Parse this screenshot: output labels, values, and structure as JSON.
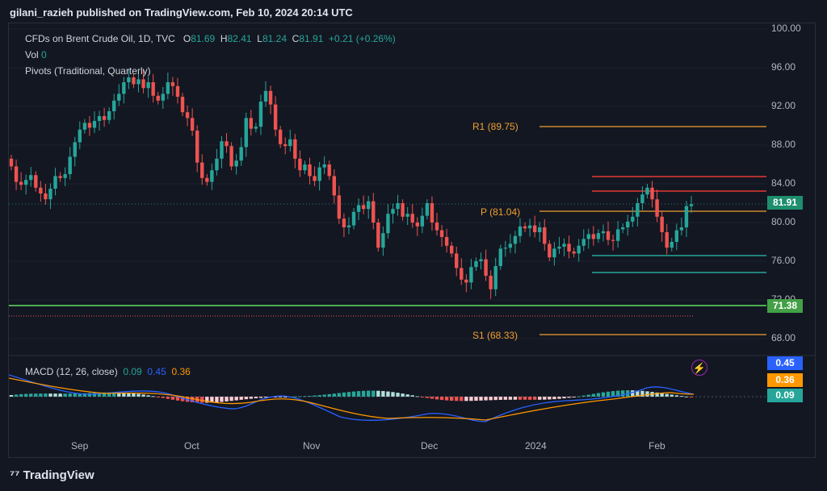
{
  "header": {
    "publisher_line": "gilani_razieh published on TradingView.com, Feb 10, 2024 20:14 UTC"
  },
  "legend": {
    "symbol": "CFDs on Brent Crude Oil, 1D, TVC",
    "o_label": "O",
    "o_val": "81.69",
    "h_label": "H",
    "h_val": "82.41",
    "l_label": "L",
    "l_val": "81.24",
    "c_label": "C",
    "c_val": "81.91",
    "change": "+0.21 (+0.26%)",
    "vol_label": "Vol",
    "vol_val": "0",
    "pivots": "Pivots (Traditional, Quarterly)",
    "macd_label": "MACD (12, 26, close)",
    "macd_hist": "0.09",
    "macd_line": "0.45",
    "macd_signal": "0.36"
  },
  "price_axis": [
    "100.00",
    "96.00",
    "92.00",
    "88.00",
    "84.00",
    "80.00",
    "76.00",
    "72.00",
    "68.00"
  ],
  "time_axis": [
    "Sep",
    "Oct",
    "Nov",
    "Dec",
    "2024",
    "Feb"
  ],
  "badges": {
    "last_price": "81.91",
    "support": "71.38",
    "macd_line": "0.45",
    "macd_signal": "0.36",
    "macd_hist": "0.09"
  },
  "pivots": {
    "r1": "R1 (89.75)",
    "p": "P (81.04)",
    "s1": "S1 (68.33)"
  },
  "footer": {
    "brand": "TradingView"
  },
  "colors": {
    "up": "#26a69a",
    "down": "#ef5350",
    "pivot": "#f0a030",
    "support": "#4caf50",
    "macd": "#2962ff",
    "signal": "#ff9800"
  },
  "chart_data": {
    "type": "candlestick",
    "ylim": [
      66,
      100
    ],
    "closes": [
      85.8,
      84.2,
      83.9,
      84.4,
      84.9,
      83.6,
      83.0,
      82.4,
      83.5,
      84.8,
      84.6,
      85.0,
      86.8,
      88.3,
      89.6,
      90.3,
      89.8,
      90.5,
      91.0,
      90.6,
      91.5,
      92.6,
      93.3,
      94.5,
      95.0,
      94.3,
      94.8,
      93.9,
      94.5,
      93.1,
      92.6,
      93.3,
      94.5,
      94.1,
      93.0,
      91.4,
      90.8,
      89.5,
      86.2,
      84.6,
      84.2,
      85.4,
      86.6,
      88.4,
      87.9,
      85.8,
      86.4,
      87.8,
      90.8,
      89.7,
      89.9,
      92.5,
      93.6,
      92.2,
      89.6,
      88.1,
      87.9,
      88.6,
      86.6,
      85.4,
      86.0,
      84.8,
      84.3,
      85.7,
      86.0,
      84.8,
      82.8,
      80.4,
      79.5,
      79.7,
      81.1,
      81.8,
      81.4,
      82.2,
      80.0,
      77.4,
      78.9,
      80.9,
      81.4,
      82.0,
      80.6,
      80.9,
      80.0,
      79.6,
      80.7,
      82.0,
      80.0,
      79.2,
      78.5,
      77.6,
      76.8,
      75.3,
      74.1,
      73.8,
      75.4,
      76.0,
      76.2,
      74.5,
      73.1,
      75.5,
      77.3,
      77.4,
      77.8,
      78.6,
      79.6,
      79.4,
      79.7,
      79.0,
      79.5,
      77.8,
      76.4,
      77.3,
      77.5,
      77.8,
      77.0,
      76.8,
      77.6,
      78.3,
      78.8,
      78.3,
      78.9,
      79.1,
      78.2,
      78.1,
      79.3,
      79.5,
      80.1,
      80.6,
      82.0,
      82.9,
      83.6,
      82.4,
      80.6,
      79.0,
      77.4,
      78.0,
      79.2,
      79.5,
      81.7,
      81.9
    ]
  }
}
